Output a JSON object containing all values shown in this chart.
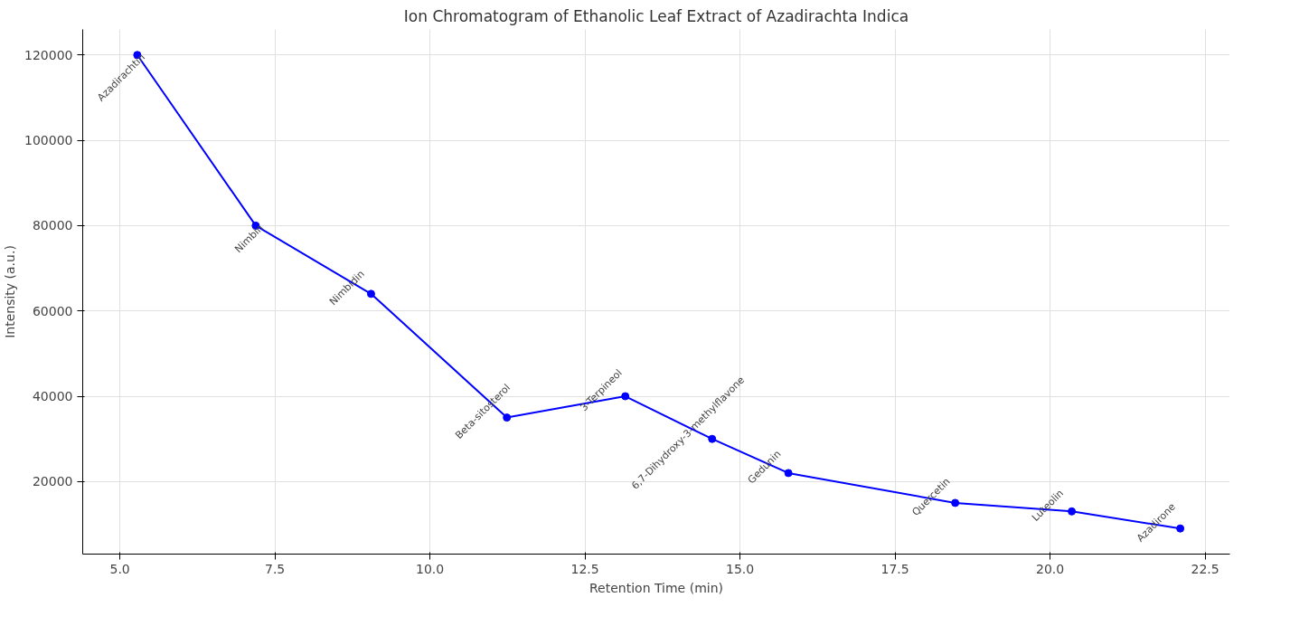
{
  "chart_data": {
    "type": "line",
    "title": "Ion Chromatogram of Ethanolic Leaf Extract of Azadirachta Indica",
    "xlabel": "Retention Time (min)",
    "ylabel": "Intensity (a.u.)",
    "x": [
      5.28,
      7.19,
      9.05,
      11.24,
      13.15,
      14.55,
      15.78,
      18.47,
      20.35,
      22.1
    ],
    "series": [
      {
        "color": "#0000ff",
        "values": [
          120000,
          80000,
          64000,
          35000,
          40000,
          30000,
          22000,
          15000,
          13000,
          9000
        ]
      }
    ],
    "annotations": [
      {
        "text": "Azadirachtin",
        "x": 5.28,
        "y": 120000
      },
      {
        "text": "Nimbin",
        "x": 7.19,
        "y": 80000
      },
      {
        "text": "Nimbidin",
        "x": 9.05,
        "y": 64000
      },
      {
        "text": "Beta-sitosterol",
        "x": 11.24,
        "y": 35000
      },
      {
        "text": "3-Terpineol",
        "x": 13.15,
        "y": 40000
      },
      {
        "text": "6,7-Dihydroxy-3-methylflavone",
        "x": 14.55,
        "y": 30000
      },
      {
        "text": "Gedunin",
        "x": 15.78,
        "y": 22000
      },
      {
        "text": "Quercetin",
        "x": 18.47,
        "y": 15000
      },
      {
        "text": "Luteolin",
        "x": 20.35,
        "y": 13000
      },
      {
        "text": "Azadirone",
        "x": 22.1,
        "y": 9000
      }
    ],
    "xlim": [
      4.4,
      22.9
    ],
    "ylim": [
      3000,
      126000
    ],
    "xticks": [
      {
        "value": 5,
        "label": "5.0"
      },
      7.5,
      {
        "value": 10,
        "label": "10.0"
      },
      12.5,
      {
        "value": 15,
        "label": "15.0"
      },
      17.5,
      {
        "value": 20,
        "label": "20.0"
      },
      22.5
    ],
    "yticks": [
      20000,
      40000,
      60000,
      80000,
      100000,
      120000
    ],
    "grid": true,
    "marker": "circle",
    "line_style": "solid"
  }
}
